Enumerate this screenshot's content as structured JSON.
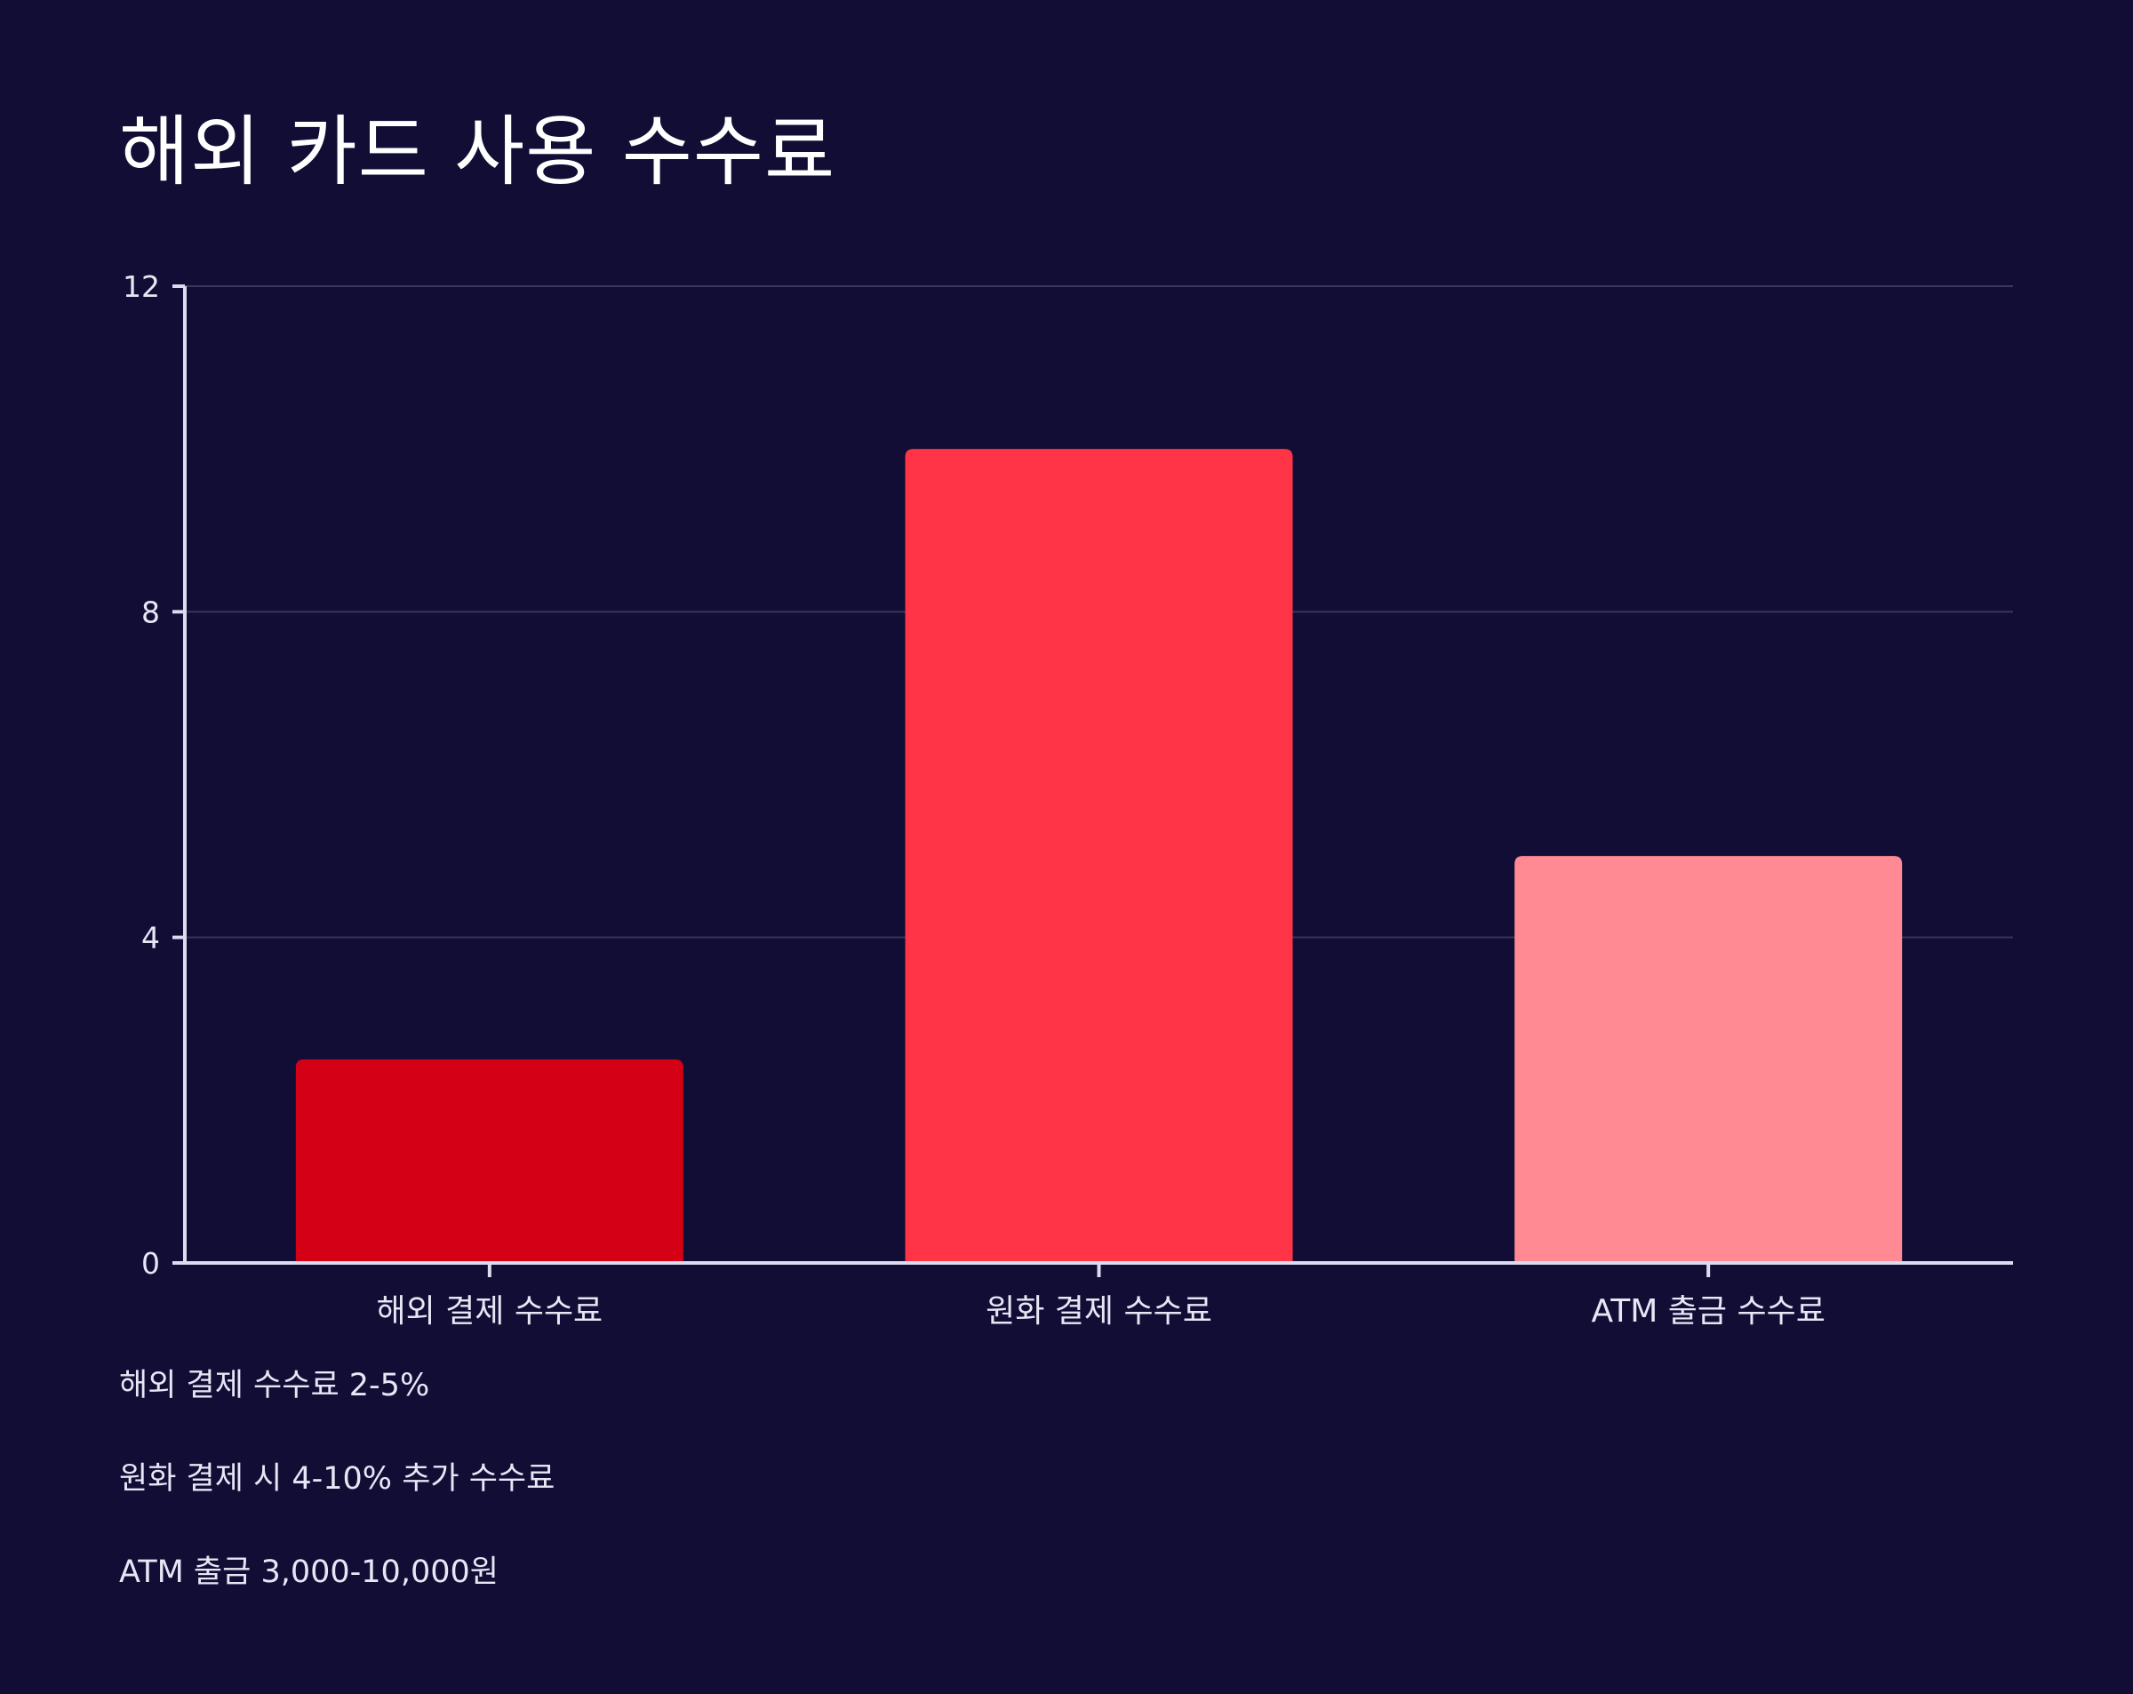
{
  "title": "해외 카드 사용 수수료",
  "chart_data": {
    "type": "bar",
    "categories": [
      "해외 결제 수수료",
      "원화 결제 수수료",
      "ATM 출금 수수료"
    ],
    "values": [
      2.5,
      10,
      5
    ],
    "colors": [
      "#d40016",
      "#ff3446",
      "#ff8a94"
    ],
    "y_ticks": [
      "0",
      "4",
      "8",
      "12"
    ],
    "ylim": [
      0,
      12
    ],
    "grid": true,
    "xlabel": "",
    "ylabel": ""
  },
  "notes": [
    "해외 결제 수수료 2-5%",
    "원화 결제 시 4-10% 추가 수수료",
    "ATM 출금 3,000-10,000원"
  ],
  "colors": {
    "background": "#110d35",
    "axis": "#dcdcf0",
    "grid": "#3a3758",
    "text": "#ffffff"
  }
}
